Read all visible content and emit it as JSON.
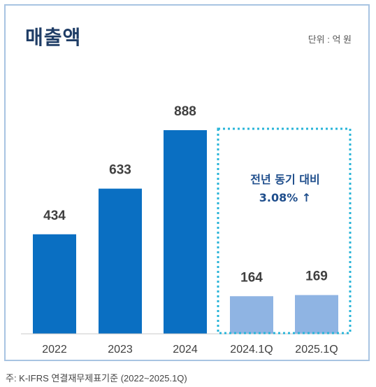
{
  "header": {
    "title": "매출액",
    "unit": "단위 : 억 원"
  },
  "footnote": "주: K-IFRS 연결재무제표기준 (2022~2025.1Q)",
  "colors": {
    "annual": "#0a6fc2",
    "quarterly": "#8fb4e3",
    "highlight_border": "#29b4d8",
    "title": "#1f3d66"
  },
  "chart_data": {
    "type": "bar",
    "categories": [
      "2022",
      "2023",
      "2024",
      "2024.1Q",
      "2025.1Q"
    ],
    "values": [
      434,
      633,
      888,
      164,
      169
    ],
    "title": "매출액",
    "xlabel": "",
    "ylabel": "",
    "grid": false,
    "annotation": {
      "line1": "전년 동기 대비",
      "line2": "3.08% ↑"
    }
  }
}
